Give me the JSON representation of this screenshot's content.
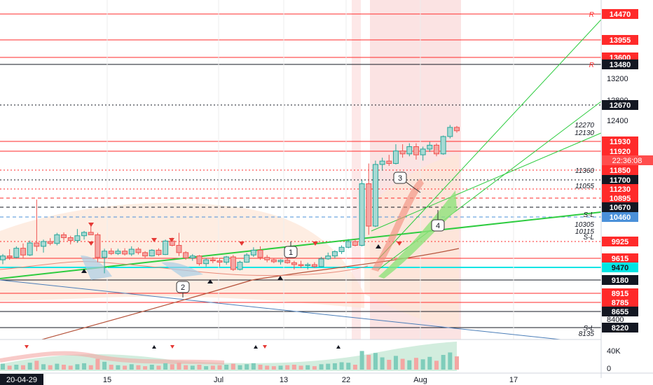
{
  "chart_data": {
    "type": "candlestick",
    "x_start_label": "20-04-29",
    "x_tick_labels": [
      "15",
      "Jul",
      "13",
      "22",
      "Aug",
      "17"
    ],
    "y_tick_labels": [
      "8400",
      "12400",
      "12800",
      "13200"
    ],
    "volume_axis_labels": [
      "40K",
      "0"
    ],
    "countdown": "22:36:08",
    "price_tags": [
      {
        "value": 14470,
        "label": "14470",
        "color": "#ff2a2a",
        "line": "solid"
      },
      {
        "value": 13955,
        "label": "13955",
        "color": "#ff2a2a",
        "line": "solid"
      },
      {
        "value": 13600,
        "label": "13600",
        "color": "#ff2a2a",
        "line": "solid"
      },
      {
        "value": 13480,
        "label": "13480",
        "color": "#131722",
        "line": "solid"
      },
      {
        "value": 12670,
        "label": "12670",
        "color": "#131722",
        "line": "dotted"
      },
      {
        "value": 11930,
        "label": "11930",
        "color": "#ff2a2a",
        "line": "solid"
      },
      {
        "value": 11920,
        "label": "11920",
        "color": "#ff2a2a",
        "line": "solid"
      },
      {
        "value": 11850,
        "label": "11850",
        "color": "#ff2a2a",
        "line": "dotted"
      },
      {
        "value": 11700,
        "label": "11700",
        "color": "#131722",
        "line": "dotted"
      },
      {
        "value": 11230,
        "label": "11230",
        "color": "#ff2a2a",
        "line": "dotted"
      },
      {
        "value": 10895,
        "label": "10895",
        "color": "#ff2a2a",
        "line": "dashed"
      },
      {
        "value": 10670,
        "label": "10670",
        "color": "#131722",
        "line": "dashed"
      },
      {
        "value": 10460,
        "label": "10460",
        "color": "#4a90d9",
        "line": "dashed"
      },
      {
        "value": 9925,
        "label": "9925",
        "color": "#ff2a2a",
        "line": "dotted"
      },
      {
        "value": 9615,
        "label": "9615",
        "color": "#ff2a2a",
        "line": "solid"
      },
      {
        "value": 9470,
        "label": "9470",
        "color": "#00e5e5",
        "line": "solid"
      },
      {
        "value": 9180,
        "label": "9180",
        "color": "#131722",
        "line": "solid"
      },
      {
        "value": 8915,
        "label": "8915",
        "color": "#ff2a2a",
        "line": "solid"
      },
      {
        "value": 8785,
        "label": "8785",
        "color": "#ff2a2a",
        "line": "solid"
      },
      {
        "value": 8655,
        "label": "8655",
        "color": "#131722",
        "line": "solid"
      },
      {
        "value": 8220,
        "label": "8220",
        "color": "#131722",
        "line": "solid"
      }
    ],
    "level_labels": [
      {
        "value": 14470,
        "text": "R"
      },
      {
        "value": 13480,
        "text": "R"
      },
      {
        "value": 12270,
        "text": "12270"
      },
      {
        "value": 12130,
        "text": "12130"
      },
      {
        "value": 11360,
        "text": "11360"
      },
      {
        "value": 11055,
        "text": "11055"
      },
      {
        "value": 10460,
        "text": "S-L"
      },
      {
        "value": 10305,
        "text": "10305"
      },
      {
        "value": 10115,
        "text": "10115"
      },
      {
        "value": 10000,
        "text": "S-L"
      },
      {
        "value": 8220,
        "text": "S-L"
      },
      {
        "value": 8135,
        "text": "8135"
      }
    ],
    "annotations": [
      "1",
      "2",
      "3",
      "4"
    ],
    "candles": [
      {
        "o": 9300,
        "h": 9420,
        "l": 9210,
        "c": 9380
      },
      {
        "o": 9380,
        "h": 9520,
        "l": 9300,
        "c": 9350
      },
      {
        "o": 9350,
        "h": 9580,
        "l": 9330,
        "c": 9540
      },
      {
        "o": 9540,
        "h": 9640,
        "l": 9330,
        "c": 9400
      },
      {
        "o": 9400,
        "h": 9700,
        "l": 9380,
        "c": 9650
      },
      {
        "o": 9650,
        "h": 10550,
        "l": 9480,
        "c": 9580
      },
      {
        "o": 9580,
        "h": 9720,
        "l": 9450,
        "c": 9680
      },
      {
        "o": 9680,
        "h": 9750,
        "l": 9600,
        "c": 9640
      },
      {
        "o": 9640,
        "h": 9860,
        "l": 9600,
        "c": 9820
      },
      {
        "o": 9820,
        "h": 9870,
        "l": 9700,
        "c": 9760
      },
      {
        "o": 9760,
        "h": 9800,
        "l": 9620,
        "c": 9700
      },
      {
        "o": 9700,
        "h": 9940,
        "l": 9650,
        "c": 9800
      },
      {
        "o": 9800,
        "h": 9900,
        "l": 9720,
        "c": 9870
      },
      {
        "o": 9870,
        "h": 10060,
        "l": 9820,
        "c": 9820
      },
      {
        "o": 9820,
        "h": 9860,
        "l": 9250,
        "c": 9350
      },
      {
        "o": 9350,
        "h": 9530,
        "l": 9020,
        "c": 9480
      },
      {
        "o": 9480,
        "h": 9540,
        "l": 9400,
        "c": 9430
      },
      {
        "o": 9430,
        "h": 9530,
        "l": 9400,
        "c": 9480
      },
      {
        "o": 9480,
        "h": 9540,
        "l": 9390,
        "c": 9420
      },
      {
        "o": 9420,
        "h": 9580,
        "l": 9380,
        "c": 9520
      },
      {
        "o": 9520,
        "h": 9560,
        "l": 9410,
        "c": 9450
      },
      {
        "o": 9450,
        "h": 9480,
        "l": 9340,
        "c": 9380
      },
      {
        "o": 9380,
        "h": 9520,
        "l": 9370,
        "c": 9500
      },
      {
        "o": 9500,
        "h": 9540,
        "l": 9380,
        "c": 9410
      },
      {
        "o": 9410,
        "h": 9720,
        "l": 9400,
        "c": 9690
      },
      {
        "o": 9690,
        "h": 9760,
        "l": 9580,
        "c": 9600
      },
      {
        "o": 9600,
        "h": 9860,
        "l": 9380,
        "c": 9450
      },
      {
        "o": 9450,
        "h": 9480,
        "l": 9300,
        "c": 9340
      },
      {
        "o": 9340,
        "h": 9420,
        "l": 9280,
        "c": 9380
      },
      {
        "o": 9380,
        "h": 9400,
        "l": 9180,
        "c": 9220
      },
      {
        "o": 9220,
        "h": 9340,
        "l": 9160,
        "c": 9300
      },
      {
        "o": 9300,
        "h": 9360,
        "l": 9230,
        "c": 9280
      },
      {
        "o": 9280,
        "h": 9330,
        "l": 9160,
        "c": 9250
      },
      {
        "o": 9250,
        "h": 9380,
        "l": 9200,
        "c": 9360
      },
      {
        "o": 9360,
        "h": 9400,
        "l": 9070,
        "c": 9100
      },
      {
        "o": 9100,
        "h": 9280,
        "l": 9080,
        "c": 9250
      },
      {
        "o": 9250,
        "h": 9440,
        "l": 9240,
        "c": 9400
      },
      {
        "o": 9400,
        "h": 9560,
        "l": 9360,
        "c": 9500
      },
      {
        "o": 9500,
        "h": 9580,
        "l": 9300,
        "c": 9350
      },
      {
        "o": 9350,
        "h": 9400,
        "l": 9250,
        "c": 9300
      },
      {
        "o": 9300,
        "h": 9340,
        "l": 9230,
        "c": 9260
      },
      {
        "o": 9260,
        "h": 9310,
        "l": 9200,
        "c": 9290
      },
      {
        "o": 9290,
        "h": 9330,
        "l": 9220,
        "c": 9240
      },
      {
        "o": 9240,
        "h": 9280,
        "l": 9100,
        "c": 9200
      },
      {
        "o": 9200,
        "h": 9280,
        "l": 9130,
        "c": 9180
      },
      {
        "o": 9180,
        "h": 9240,
        "l": 9100,
        "c": 9200
      },
      {
        "o": 9200,
        "h": 9250,
        "l": 9130,
        "c": 9160
      },
      {
        "o": 9160,
        "h": 9360,
        "l": 9150,
        "c": 9320
      },
      {
        "o": 9320,
        "h": 9450,
        "l": 9300,
        "c": 9380
      },
      {
        "o": 9380,
        "h": 9500,
        "l": 9330,
        "c": 9470
      },
      {
        "o": 9470,
        "h": 9600,
        "l": 9420,
        "c": 9560
      },
      {
        "o": 9560,
        "h": 9730,
        "l": 9540,
        "c": 9680
      },
      {
        "o": 9680,
        "h": 9720,
        "l": 9580,
        "c": 9600
      },
      {
        "o": 9600,
        "h": 10950,
        "l": 9580,
        "c": 10880
      },
      {
        "o": 10880,
        "h": 11300,
        "l": 9820,
        "c": 10000
      },
      {
        "o": 10000,
        "h": 11360,
        "l": 9980,
        "c": 11280
      },
      {
        "o": 11280,
        "h": 11420,
        "l": 11150,
        "c": 11350
      },
      {
        "o": 11350,
        "h": 11480,
        "l": 11250,
        "c": 11300
      },
      {
        "o": 11300,
        "h": 11700,
        "l": 11280,
        "c": 11560
      },
      {
        "o": 11560,
        "h": 11700,
        "l": 11420,
        "c": 11500
      },
      {
        "o": 11500,
        "h": 11720,
        "l": 11450,
        "c": 11650
      },
      {
        "o": 11650,
        "h": 11720,
        "l": 11380,
        "c": 11480
      },
      {
        "o": 11480,
        "h": 11650,
        "l": 11360,
        "c": 11600
      },
      {
        "o": 11600,
        "h": 11750,
        "l": 11540,
        "c": 11680
      },
      {
        "o": 11680,
        "h": 11720,
        "l": 11450,
        "c": 11500
      },
      {
        "o": 11500,
        "h": 11880,
        "l": 11480,
        "c": 11860
      },
      {
        "o": 11860,
        "h": 12100,
        "l": 11820,
        "c": 12050
      },
      {
        "o": 12050,
        "h": 12080,
        "l": 11940,
        "c": 11980
      }
    ],
    "volumes": [
      12,
      8,
      10,
      9,
      14,
      18,
      11,
      9,
      12,
      10,
      8,
      11,
      13,
      9,
      22,
      16,
      10,
      9,
      8,
      11,
      9,
      7,
      10,
      8,
      13,
      11,
      14,
      9,
      8,
      10,
      7,
      8,
      9,
      10,
      12,
      9,
      11,
      13,
      10,
      8,
      7,
      8,
      9,
      10,
      8,
      9,
      7,
      11,
      12,
      13,
      15,
      14,
      10,
      38,
      30,
      34,
      25,
      20,
      28,
      22,
      19,
      24,
      21,
      26,
      18,
      30,
      35,
      27
    ]
  }
}
